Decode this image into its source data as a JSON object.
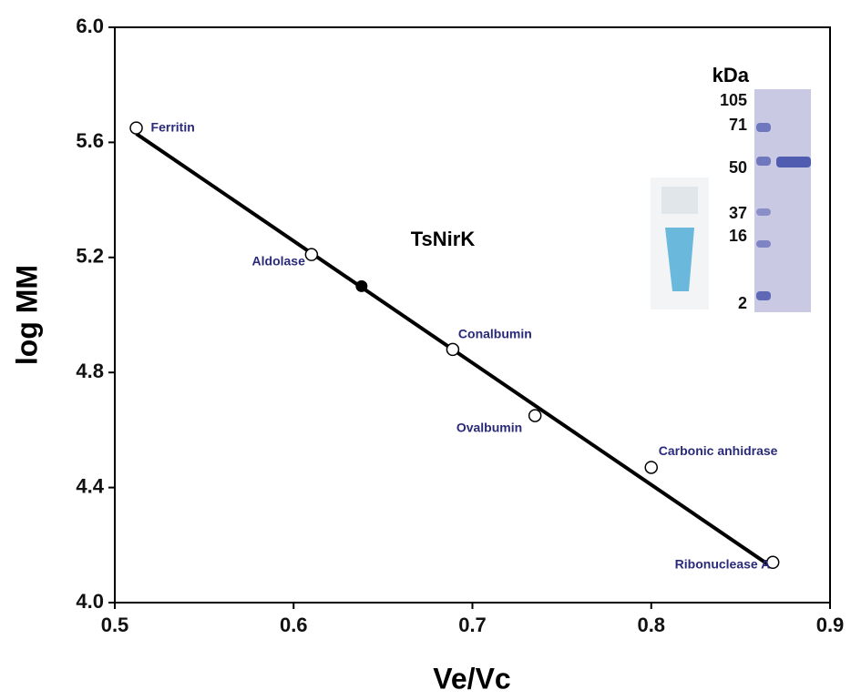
{
  "chart_data": {
    "type": "scatter",
    "xlabel": "Ve/Vc",
    "ylabel": "log MM",
    "xlim": [
      0.5,
      0.9
    ],
    "ylim": [
      4.0,
      6.0
    ],
    "xticks": [
      0.5,
      0.6,
      0.7,
      0.8,
      0.9
    ],
    "yticks": [
      {
        "value": 4.0,
        "label": "4.0"
      },
      {
        "value": 4.4,
        "label": "4.4"
      },
      {
        "value": 4.8,
        "label": "4.8"
      },
      {
        "value": 5.2,
        "label": "5.2"
      },
      {
        "value": 5.6,
        "label": "5.6"
      },
      {
        "value": 6.0,
        "label": "6.0"
      }
    ],
    "standards": {
      "labels": [
        "Ferritin",
        "Aldolase",
        "Conalbumin",
        "Ovalbumin",
        "Carbonic anhidrase",
        "Ribonuclease A"
      ],
      "x": [
        0.512,
        0.61,
        0.689,
        0.735,
        0.8,
        0.868
      ],
      "values": [
        5.65,
        5.21,
        4.88,
        4.65,
        4.47,
        4.14
      ]
    },
    "sample": {
      "label": "TsNirK",
      "x": 0.638,
      "value": 5.1
    },
    "fit": {
      "x": [
        0.512,
        0.866
      ],
      "values": [
        5.63,
        4.13
      ]
    },
    "inset": {
      "title": "kDa",
      "labels": [
        "105",
        "71",
        "50",
        "37",
        "16",
        "2"
      ]
    }
  }
}
